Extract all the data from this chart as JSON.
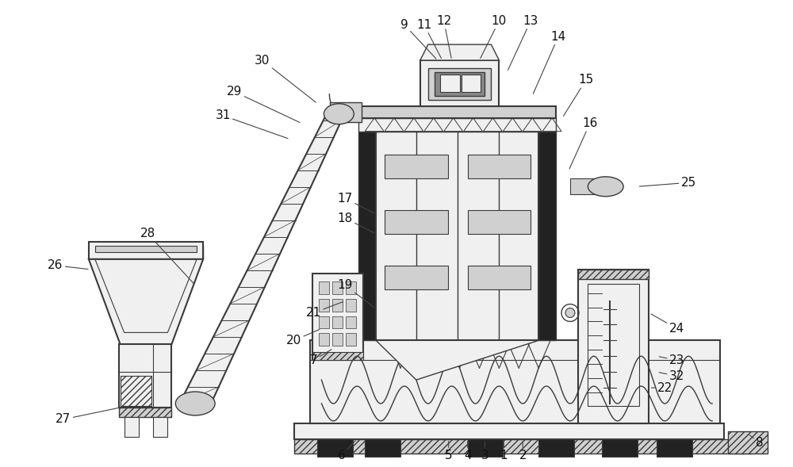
{
  "bg_color": "#ffffff",
  "lc": "#3a3a3a",
  "fill_light": "#f0f0f0",
  "fill_mid": "#d0d0d0",
  "fill_dark": "#888888",
  "fill_black": "#222222",
  "figsize": [
    10.0,
    5.89
  ],
  "dpi": 100
}
